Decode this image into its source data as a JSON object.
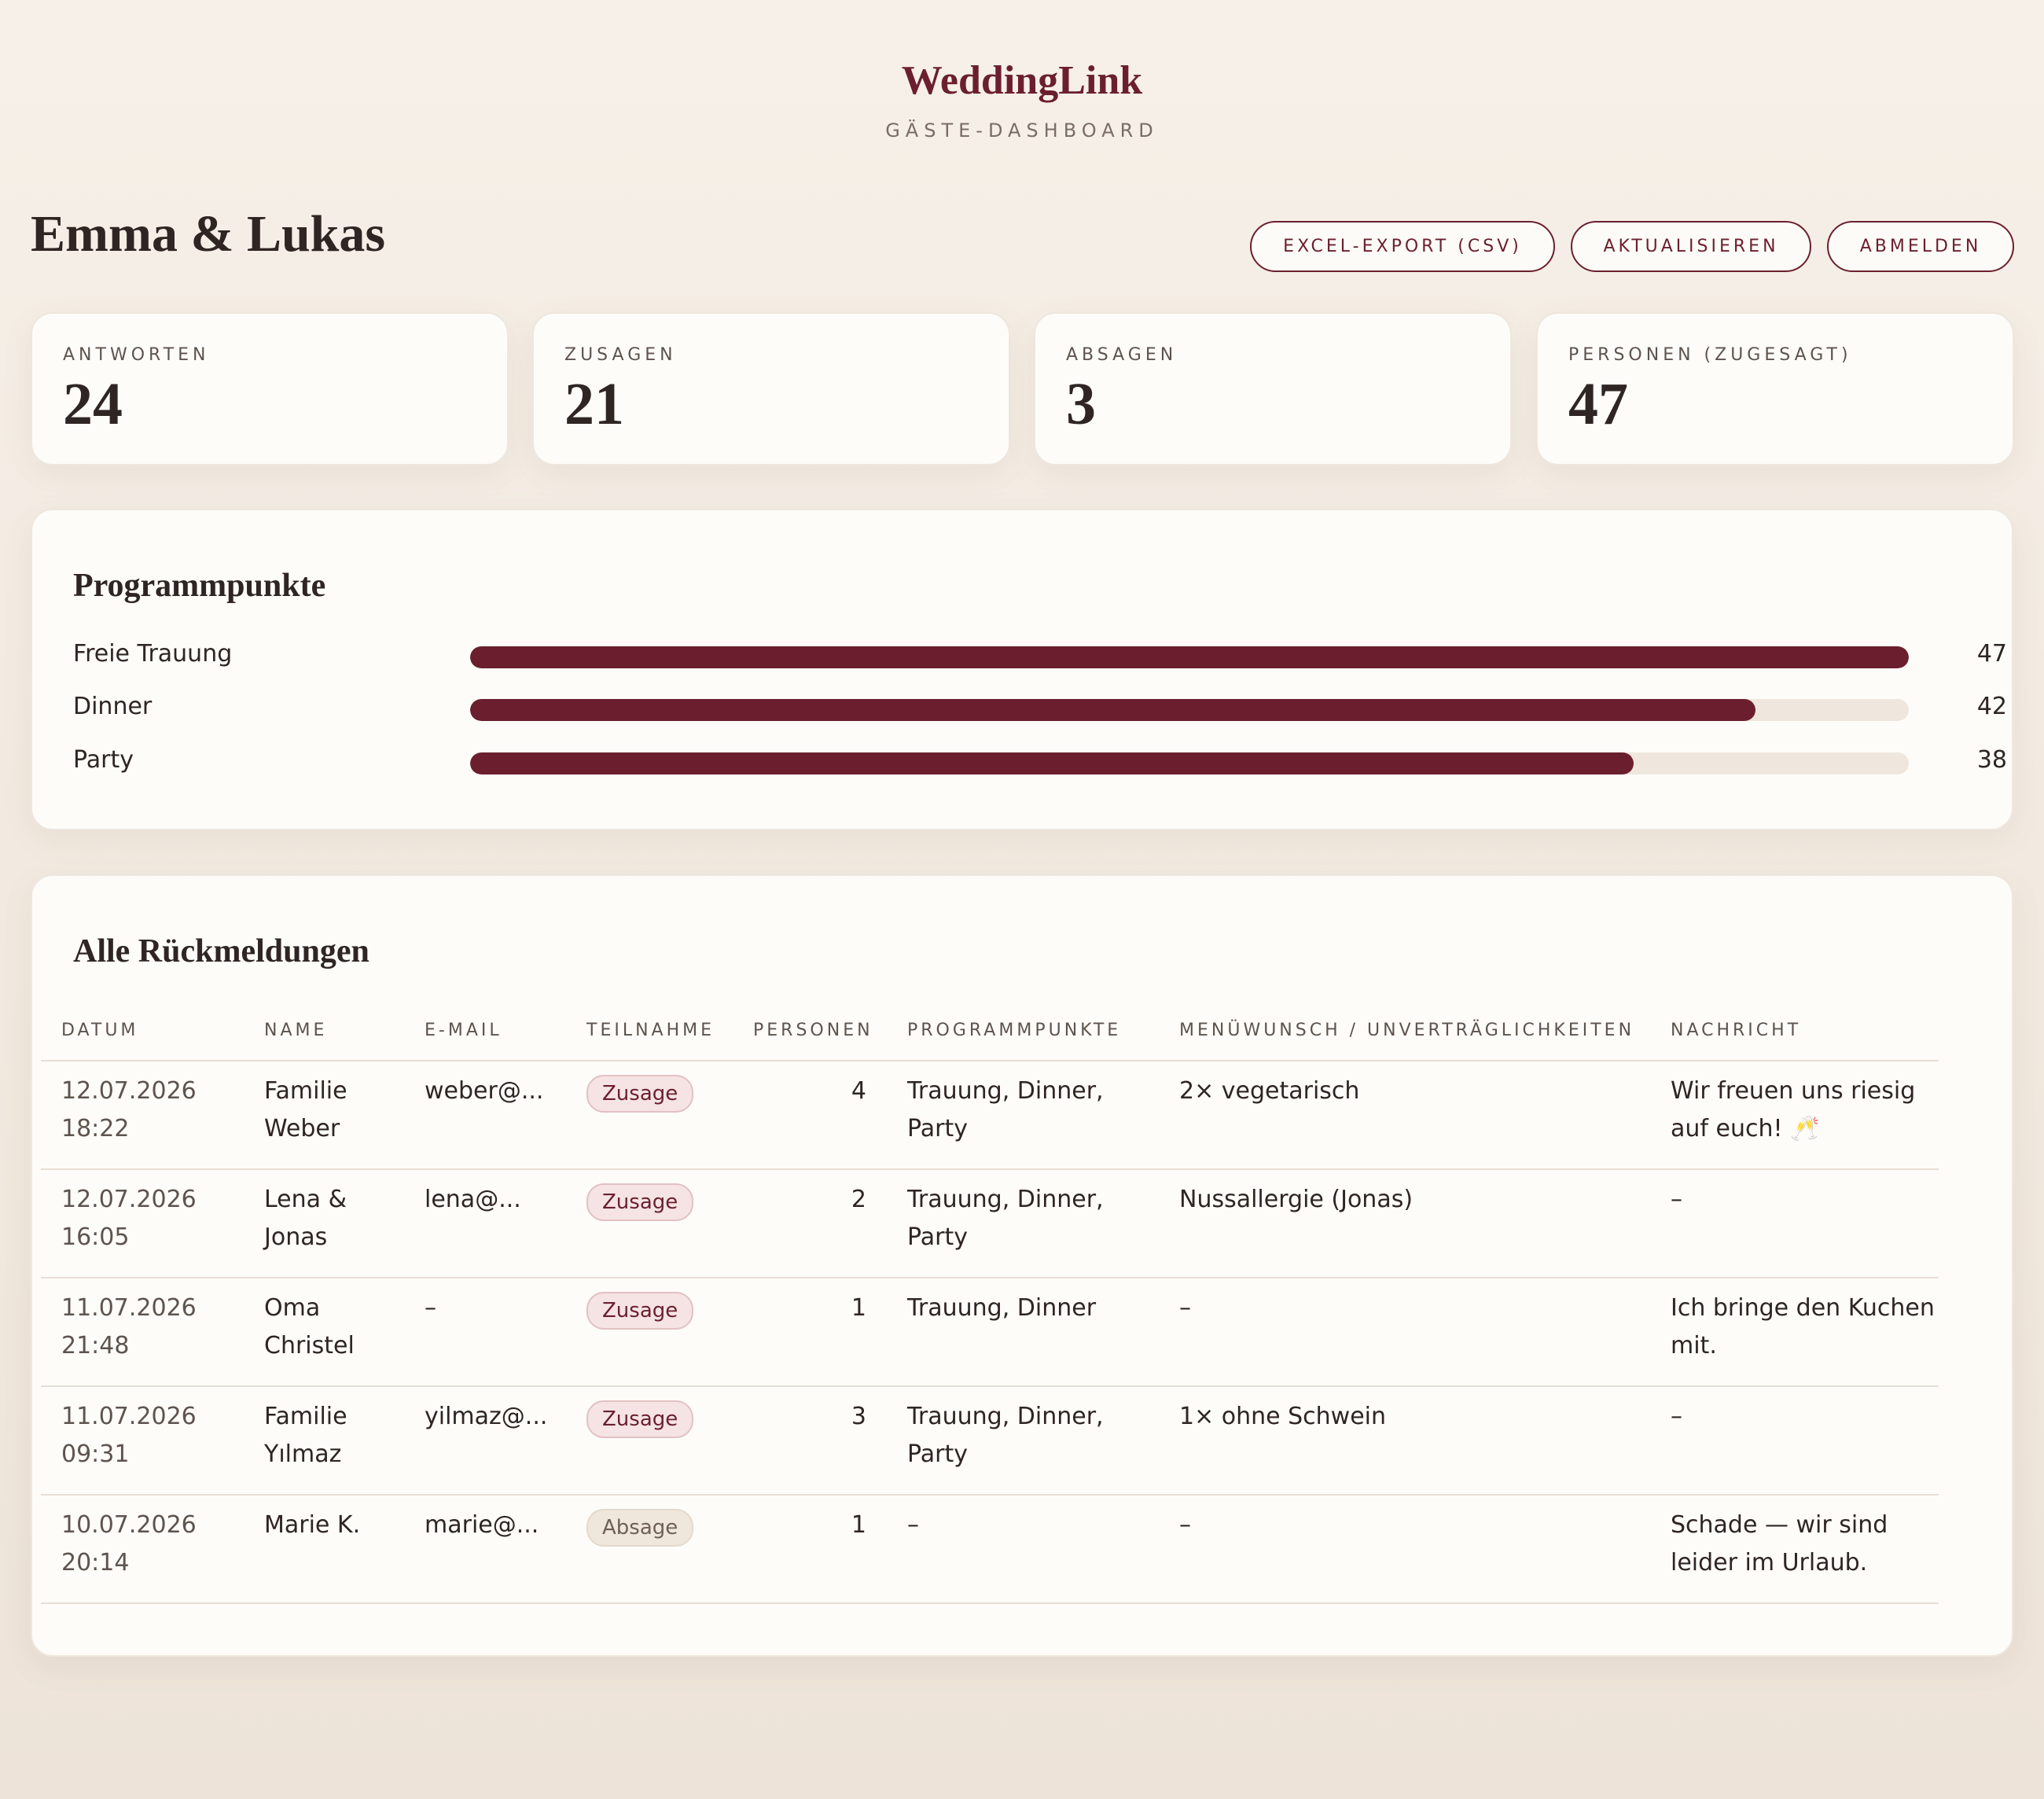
{
  "brand": {
    "title": "WeddingLink",
    "subtitle": "GÄSTE-DASHBOARD"
  },
  "couple": "Emma & Lukas",
  "toolbar": {
    "export_label": "EXCEL-EXPORT (CSV)",
    "refresh_label": "AKTUALISIEREN",
    "logout_label": "ABMELDEN"
  },
  "stats": [
    {
      "label": "ANTWORTEN",
      "value": "24"
    },
    {
      "label": "ZUSAGEN",
      "value": "21"
    },
    {
      "label": "ABSAGEN",
      "value": "3"
    },
    {
      "label": "PERSONEN (ZUGESAGT)",
      "value": "47"
    }
  ],
  "program": {
    "title": "Programmpunkte",
    "max": 47,
    "items": [
      {
        "label": "Freie Trauung",
        "value": 47
      },
      {
        "label": "Dinner",
        "value": 42
      },
      {
        "label": "Party",
        "value": 38
      }
    ]
  },
  "responses": {
    "title": "Alle Rückmeldungen",
    "columns": [
      "DATUM",
      "NAME",
      "E-MAIL",
      "TEILNAHME",
      "PERSONEN",
      "PROGRAMMPUNKTE",
      "MENÜWUNSCH / UNVERTRÄGLICHKEITEN",
      "NACHRICHT"
    ],
    "rows": [
      {
        "date": "12.07.2026 18:22",
        "name": "Familie Weber",
        "email": "weber@...",
        "status": "Zusage",
        "persons": "4",
        "program": "Trauung, Dinner, Party",
        "menu": "2× vegetarisch",
        "message": "Wir freuen uns riesig auf euch! 🥂"
      },
      {
        "date": "12.07.2026 16:05",
        "name": "Lena & Jonas",
        "email": "lena@...",
        "status": "Zusage",
        "persons": "2",
        "program": "Trauung, Dinner, Party",
        "menu": "Nussallergie (Jonas)",
        "message": "–"
      },
      {
        "date": "11.07.2026 21:48",
        "name": "Oma Christel",
        "email": "–",
        "status": "Zusage",
        "persons": "1",
        "program": "Trauung, Dinner",
        "menu": "–",
        "message": "Ich bringe den Kuchen mit."
      },
      {
        "date": "11.07.2026 09:31",
        "name": "Familie Yılmaz",
        "email": "yilmaz@...",
        "status": "Zusage",
        "persons": "3",
        "program": "Trauung, Dinner, Party",
        "menu": "1× ohne Schwein",
        "message": "–"
      },
      {
        "date": "10.07.2026 20:14",
        "name": "Marie K.",
        "email": "marie@...",
        "status": "Absage",
        "persons": "1",
        "program": "–",
        "menu": "–",
        "message": "Schade — wir sind leider im Urlaub."
      }
    ]
  },
  "colors": {
    "accent": "#6b1f2e",
    "background": "#f6f0e8",
    "card": "#fdfcf9"
  }
}
